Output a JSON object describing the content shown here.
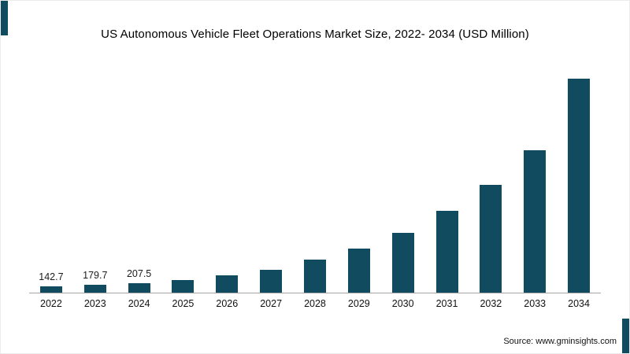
{
  "title": "US Autonomous Vehicle Fleet Operations Market Size, 2022- 2034 (USD Million)",
  "source": "Source: www.gminsights.com",
  "colors": {
    "bar": "#114b5f",
    "accent": "#114b5f",
    "axis": "#a6a6a6"
  },
  "chart_data": {
    "type": "bar",
    "title": "US Autonomous Vehicle Fleet Operations Market Size, 2022- 2034 (USD Million)",
    "categories": [
      "2022",
      "2023",
      "2024",
      "2025",
      "2026",
      "2027",
      "2028",
      "2029",
      "2030",
      "2031",
      "2032",
      "2033",
      "2034"
    ],
    "values": [
      142.7,
      179.7,
      207.5,
      280,
      385,
      525,
      740,
      1000,
      1360,
      1860,
      2450,
      3230,
      4850
    ],
    "data_labels": [
      "142.7",
      "179.7",
      "207.5",
      "",
      "",
      "",
      "",
      "",
      "",
      "",
      "",
      "",
      ""
    ],
    "xlabel": "",
    "ylabel": "",
    "ylim": [
      0,
      4850
    ],
    "grid": false,
    "legend": false,
    "note": "Only the first three bars carry visible data labels; remaining values estimated from bar heights"
  }
}
